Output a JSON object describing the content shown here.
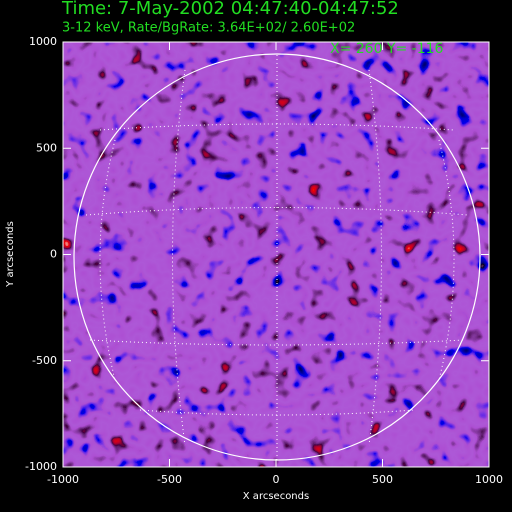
{
  "chart_data": {
    "type": "image",
    "title": "Time:  7-May-2002 04:47:40-04:47:52",
    "subtitle": "3-12 keV, Rate/BgRate:  3.64E+02/  2.60E+02",
    "annotation": "X=  260 Y= -116",
    "xlabel": "X arcseconds",
    "ylabel": "Y arcseconds",
    "xlim": [
      -1000,
      1000
    ],
    "ylim": [
      -1000,
      1000
    ],
    "xticks": [
      -1000,
      -500,
      0,
      500,
      1000
    ],
    "yticks": [
      -1000,
      -500,
      0,
      500,
      1000
    ],
    "title_color": "#22dd22",
    "axis_color": "#ffffff"
  }
}
